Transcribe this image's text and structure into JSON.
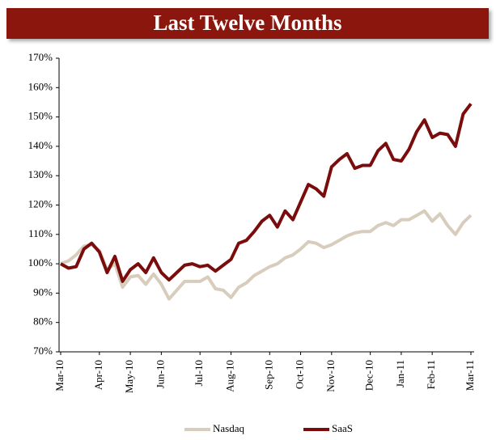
{
  "chart_data": {
    "type": "line",
    "title": "Last Twelve Months",
    "categories": [
      "Mar-10",
      null,
      null,
      null,
      null,
      "Apr-10",
      null,
      null,
      null,
      "May-10",
      null,
      null,
      null,
      "Jun-10",
      null,
      null,
      null,
      null,
      "Jul-10",
      null,
      null,
      null,
      "Aug-10",
      null,
      null,
      null,
      null,
      "Sep-10",
      null,
      null,
      null,
      "Oct-10",
      null,
      null,
      null,
      "Nov-10",
      null,
      null,
      null,
      null,
      "Dec-10",
      null,
      null,
      null,
      "Jan-11",
      null,
      null,
      null,
      "Feb-11",
      null,
      null,
      null,
      null,
      "Mar-11"
    ],
    "series": [
      {
        "name": "Nasdaq",
        "color": "#d8cdbd",
        "values": [
          100,
          101,
          103,
          106,
          106.5,
          104.5,
          98,
          100,
          92,
          95.5,
          96,
          93,
          96.5,
          93,
          88,
          91,
          94,
          94,
          94,
          95.5,
          91.5,
          91,
          88.5,
          92,
          93.5,
          96,
          97.5,
          99,
          100,
          102,
          103,
          105,
          107.5,
          107,
          105.5,
          106.5,
          108,
          109.5,
          110.5,
          111,
          111,
          113,
          114,
          113,
          115,
          115,
          116.5,
          118,
          114.5,
          117,
          113,
          110,
          114,
          116.5
        ]
      },
      {
        "name": "SaaS",
        "color": "#7b0c0c",
        "values": [
          100,
          98.5,
          99,
          105,
          107,
          104,
          97,
          102.5,
          94,
          98,
          100,
          97,
          102,
          97,
          94.5,
          97,
          99.5,
          100,
          99,
          99.5,
          97.5,
          99.5,
          101.5,
          107,
          108,
          111,
          114.5,
          116.5,
          112.5,
          118,
          115,
          121,
          127,
          125.5,
          123,
          133,
          135.5,
          137.5,
          132.5,
          133.5,
          133.5,
          138.5,
          141,
          135.5,
          135,
          139,
          145,
          149,
          143,
          144.5,
          144,
          140,
          151,
          154.5
        ]
      }
    ],
    "ylim": [
      70,
      170
    ],
    "yticks": [
      {
        "value": 70,
        "label": "70%"
      },
      {
        "value": 80,
        "label": "80%"
      },
      {
        "value": 90,
        "label": "90%"
      },
      {
        "value": 100,
        "label": "100%"
      },
      {
        "value": 110,
        "label": "110%"
      },
      {
        "value": 120,
        "label": "120%"
      },
      {
        "value": 130,
        "label": "130%"
      },
      {
        "value": 140,
        "label": "140%"
      },
      {
        "value": 150,
        "label": "150%"
      },
      {
        "value": 160,
        "label": "160%"
      },
      {
        "value": 170,
        "label": "170%"
      }
    ],
    "grid": false,
    "legend": "bottom"
  }
}
